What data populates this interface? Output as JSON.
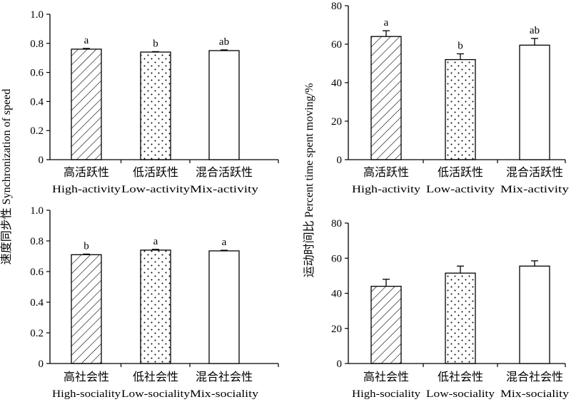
{
  "chart_data": [
    {
      "type": "bar",
      "panel": "top-left",
      "categories": [
        "High-activity",
        "Low-activity",
        "Mix-activity"
      ],
      "categories_cn": [
        "高活跃性",
        "低活跃性",
        "混合活跃性"
      ],
      "values": [
        0.76,
        0.74,
        0.75
      ],
      "errors": [
        0.005,
        0.003,
        0.005
      ],
      "significance": [
        "a",
        "b",
        "ab"
      ],
      "fills": [
        "hatch",
        "dots",
        "plain"
      ],
      "ylim": [
        0,
        1.0
      ],
      "yticks": [
        "0",
        "0.2",
        "0.4",
        "0.6",
        "0.8",
        "1.0"
      ]
    },
    {
      "type": "bar",
      "panel": "top-right",
      "categories": [
        "High-activity",
        "Low-activity",
        "Mix-activity"
      ],
      "categories_cn": [
        "高活跃性",
        "低活跃性",
        "混合活跃性"
      ],
      "values": [
        64,
        52,
        59.5
      ],
      "errors": [
        3,
        3,
        3.5
      ],
      "significance": [
        "a",
        "b",
        "ab"
      ],
      "fills": [
        "hatch",
        "dots",
        "plain"
      ],
      "ylim": [
        0,
        80
      ],
      "yticks": [
        "0",
        "20",
        "40",
        "60",
        "80"
      ]
    },
    {
      "type": "bar",
      "panel": "bottom-left",
      "categories": [
        "High-sociality",
        "Low-sociality",
        "Mix-sociality"
      ],
      "categories_cn": [
        "高社会性",
        "低社会性",
        "混合社会性"
      ],
      "values": [
        0.71,
        0.74,
        0.735
      ],
      "errors": [
        0.004,
        0.005,
        0.004
      ],
      "significance": [
        "b",
        "a",
        "a"
      ],
      "fills": [
        "hatch",
        "dots",
        "plain"
      ],
      "ylim": [
        0,
        1.0
      ],
      "yticks": [
        "0",
        "0.2",
        "0.4",
        "0.6",
        "0.8",
        "1.0"
      ]
    },
    {
      "type": "bar",
      "panel": "bottom-right",
      "categories": [
        "High-sociality",
        "Low-sociality",
        "Mix-sociality"
      ],
      "categories_cn": [
        "高社会性",
        "低社会性",
        "混合社会性"
      ],
      "values": [
        44,
        51.5,
        55.5
      ],
      "errors": [
        4,
        4,
        3
      ],
      "significance": [
        "",
        "",
        ""
      ],
      "fills": [
        "hatch",
        "dots",
        "plain"
      ],
      "ylim": [
        0,
        80
      ],
      "yticks": [
        "0",
        "20",
        "40",
        "60",
        "80"
      ]
    }
  ],
  "left_ylabel": "速度同步性 Synchronization of speed",
  "right_ylabel": "运动时间比 Percent time spent moving/%"
}
